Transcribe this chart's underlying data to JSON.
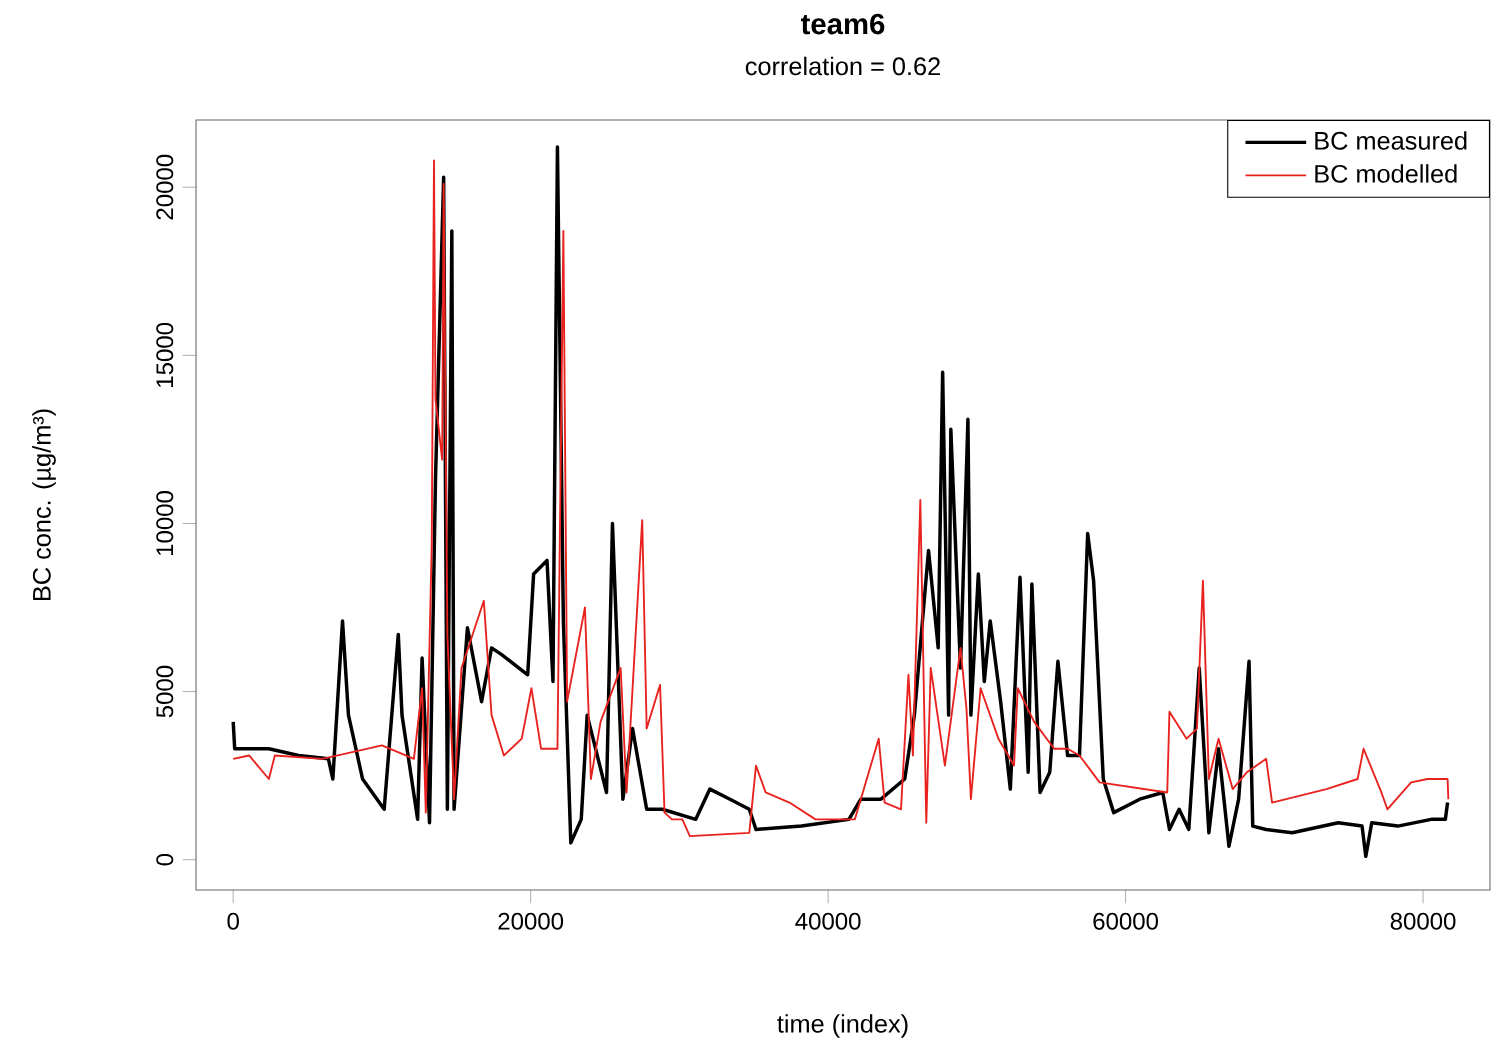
{
  "chart_data": {
    "type": "line",
    "title": "team6",
    "subtitle": "correlation = 0.62",
    "xlabel": "time (index)",
    "ylabel": "BC conc. (µg/m³)",
    "xlim": [
      -2500,
      84500
    ],
    "ylim": [
      -900,
      22000
    ],
    "xticks": [
      0,
      20000,
      40000,
      60000,
      80000
    ],
    "yticks": [
      0,
      5000,
      10000,
      15000,
      20000
    ],
    "legend": "top right",
    "grid": false,
    "series": [
      {
        "name": "BC measured",
        "color": "#000000",
        "x": [
          0,
          100,
          2400,
          4400,
          6400,
          6700,
          7350,
          7750,
          8700,
          10150,
          11100,
          11350,
          12400,
          12700,
          13200,
          13600,
          14150,
          14400,
          14700,
          14850,
          15750,
          16700,
          17370,
          18050,
          19800,
          20200,
          21100,
          21500,
          21800,
          22200,
          22700,
          23400,
          23800,
          25100,
          25500,
          26200,
          26850,
          27800,
          28850,
          31100,
          32050,
          33400,
          34700,
          35150,
          38200,
          41400,
          42200,
          43550,
          45150,
          45800,
          46750,
          47400,
          47700,
          48100,
          48250,
          48900,
          49400,
          49600,
          50100,
          50500,
          50900,
          51600,
          52250,
          52900,
          53450,
          53700,
          54250,
          54900,
          55450,
          56100,
          56900,
          57450,
          57850,
          58500,
          59200,
          60950,
          62500,
          62950,
          63600,
          64250,
          64950,
          65600,
          66250,
          66950,
          67600,
          68300,
          68550,
          69450,
          71200,
          74300,
          75900,
          76150,
          76550,
          78300,
          80550,
          81500,
          81650
        ],
        "values": [
          4100,
          3300,
          3300,
          3100,
          3000,
          2400,
          7100,
          4300,
          2400,
          1500,
          6700,
          4300,
          1200,
          6000,
          1100,
          11300,
          20300,
          1500,
          18700,
          1500,
          6900,
          4700,
          6300,
          6100,
          5500,
          8500,
          8900,
          5300,
          21200,
          7100,
          500,
          1200,
          4300,
          2000,
          10000,
          1800,
          3900,
          1500,
          1500,
          1200,
          2100,
          1800,
          1500,
          900,
          1000,
          1200,
          1800,
          1800,
          2400,
          4300,
          9200,
          6300,
          14500,
          4300,
          12800,
          5700,
          13100,
          4300,
          8500,
          5300,
          7100,
          4700,
          2100,
          8400,
          2600,
          8200,
          2000,
          2600,
          5900,
          3100,
          3100,
          9700,
          8300,
          2400,
          1400,
          1800,
          2000,
          900,
          1500,
          900,
          5700,
          800,
          3300,
          400,
          1800,
          5900,
          1000,
          900,
          800,
          1100,
          1000,
          100,
          1100,
          1000,
          1200,
          1200,
          1700
        ]
      },
      {
        "name": "BC modelled",
        "color": "#e8231f",
        "x": [
          0,
          1070,
          2400,
          2800,
          6000,
          10000,
          12150,
          12700,
          12950,
          13350,
          13500,
          13600,
          14050,
          14150,
          14400,
          14850,
          15350,
          16850,
          17370,
          18200,
          19400,
          20050,
          20700,
          21800,
          22200,
          22450,
          23650,
          24050,
          24700,
          26050,
          26450,
          27500,
          27800,
          28700,
          29000,
          29500,
          30200,
          30700,
          34700,
          35150,
          35800,
          37400,
          39150,
          41800,
          43400,
          43800,
          44900,
          45400,
          45700,
          46200,
          46600,
          46900,
          47850,
          48900,
          49300,
          49600,
          50250,
          51450,
          52500,
          52750,
          53850,
          55200,
          56100,
          56900,
          58250,
          62800,
          62950,
          64100,
          64800,
          65200,
          65600,
          66250,
          67200,
          68150,
          69450,
          69850,
          73500,
          75600,
          76000,
          77200,
          77600,
          79200,
          80300,
          81650,
          81700
        ],
        "values": [
          3000,
          3100,
          2400,
          3100,
          3000,
          3400,
          3000,
          5100,
          1400,
          9400,
          20800,
          13700,
          11900,
          20100,
          6700,
          1800,
          5700,
          7700,
          4300,
          3100,
          3600,
          5100,
          3300,
          3300,
          18700,
          4700,
          7500,
          2400,
          4100,
          5700,
          2000,
          10100,
          3900,
          5200,
          1400,
          1200,
          1200,
          700,
          800,
          2800,
          2000,
          1700,
          1200,
          1200,
          3600,
          1700,
          1500,
          5500,
          3100,
          10700,
          1100,
          5700,
          2800,
          6300,
          4500,
          1800,
          5100,
          3600,
          2800,
          5100,
          4100,
          3300,
          3300,
          3100,
          2300,
          2000,
          4400,
          3600,
          3900,
          8300,
          2400,
          3600,
          2100,
          2600,
          3000,
          1700,
          2100,
          2400,
          3300,
          2000,
          1500,
          2300,
          2400,
          2400,
          1800
        ]
      }
    ]
  }
}
